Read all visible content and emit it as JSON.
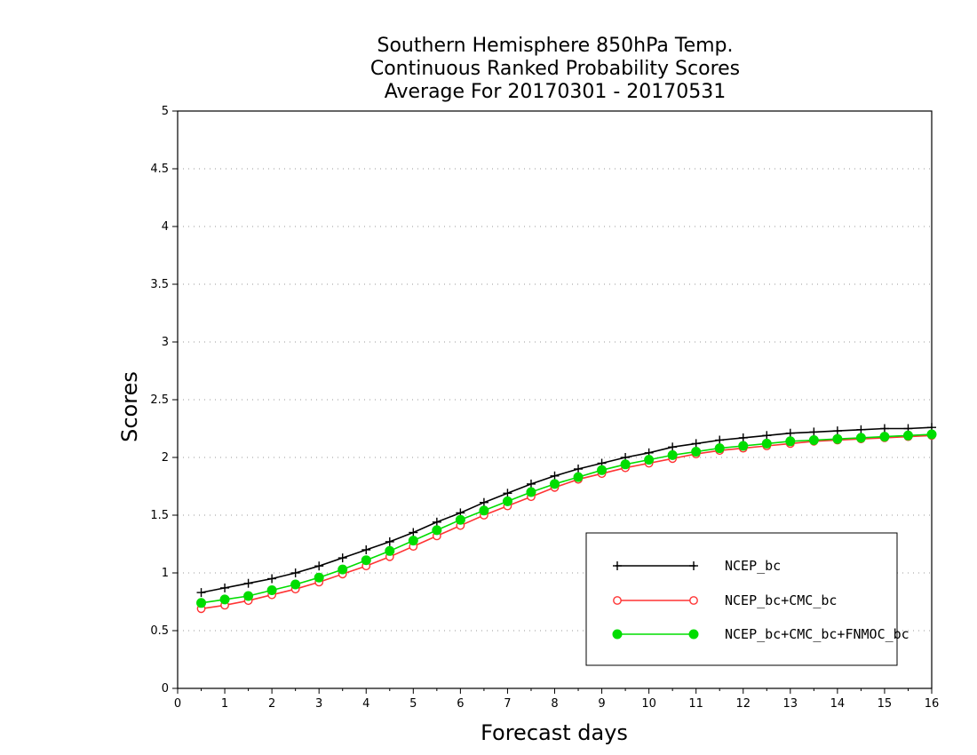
{
  "chart_data": {
    "type": "line",
    "title": [
      "Southern Hemisphere 850hPa Temp.",
      "Continuous Ranked Probability Scores",
      "Average For 20170301 - 20170531"
    ],
    "xlabel": "Forecast days",
    "ylabel": "Scores",
    "xlim": [
      0,
      16
    ],
    "ylim": [
      0,
      5
    ],
    "xticks": [
      0,
      1,
      2,
      3,
      4,
      5,
      6,
      7,
      8,
      9,
      10,
      11,
      12,
      13,
      14,
      15,
      16
    ],
    "yticks": [
      0,
      0.5,
      1,
      1.5,
      2,
      2.5,
      3,
      3.5,
      4,
      4.5,
      5
    ],
    "ytick_labels": [
      "0",
      "0.5",
      "1",
      "1.5",
      "2",
      "2.5",
      "3",
      "3.5",
      "4",
      "4.5",
      "5"
    ],
    "grid": true,
    "legend_position": "bottom-right",
    "x": [
      0.5,
      1,
      1.5,
      2,
      2.5,
      3,
      3.5,
      4,
      4.5,
      5,
      5.5,
      6,
      6.5,
      7,
      7.5,
      8,
      8.5,
      9,
      9.5,
      10,
      10.5,
      11,
      11.5,
      12,
      12.5,
      13,
      13.5,
      14,
      14.5,
      15,
      15.5,
      16
    ],
    "series": [
      {
        "name": "NCEP_bc",
        "color": "#000000",
        "marker": "plus",
        "values": [
          0.83,
          0.87,
          0.91,
          0.95,
          1.0,
          1.06,
          1.13,
          1.2,
          1.27,
          1.35,
          1.44,
          1.52,
          1.61,
          1.69,
          1.77,
          1.84,
          1.9,
          1.95,
          2.0,
          2.04,
          2.09,
          2.12,
          2.15,
          2.17,
          2.19,
          2.21,
          2.22,
          2.23,
          2.24,
          2.25,
          2.25,
          2.26
        ]
      },
      {
        "name": "NCEP_bc+CMC_bc",
        "color": "#ff3333",
        "marker": "open-circle",
        "values": [
          0.69,
          0.72,
          0.76,
          0.81,
          0.86,
          0.92,
          0.99,
          1.06,
          1.14,
          1.23,
          1.32,
          1.41,
          1.5,
          1.58,
          1.66,
          1.74,
          1.81,
          1.86,
          1.91,
          1.95,
          1.99,
          2.03,
          2.06,
          2.08,
          2.1,
          2.12,
          2.14,
          2.15,
          2.16,
          2.17,
          2.18,
          2.19
        ]
      },
      {
        "name": "NCEP_bc+CMC_bc+FNMOC_bc",
        "color": "#00dd00",
        "marker": "filled-circle",
        "values": [
          0.74,
          0.77,
          0.8,
          0.85,
          0.9,
          0.96,
          1.03,
          1.11,
          1.19,
          1.28,
          1.37,
          1.46,
          1.54,
          1.62,
          1.7,
          1.77,
          1.83,
          1.89,
          1.94,
          1.98,
          2.02,
          2.05,
          2.08,
          2.1,
          2.12,
          2.14,
          2.15,
          2.16,
          2.17,
          2.18,
          2.19,
          2.2
        ]
      }
    ]
  }
}
